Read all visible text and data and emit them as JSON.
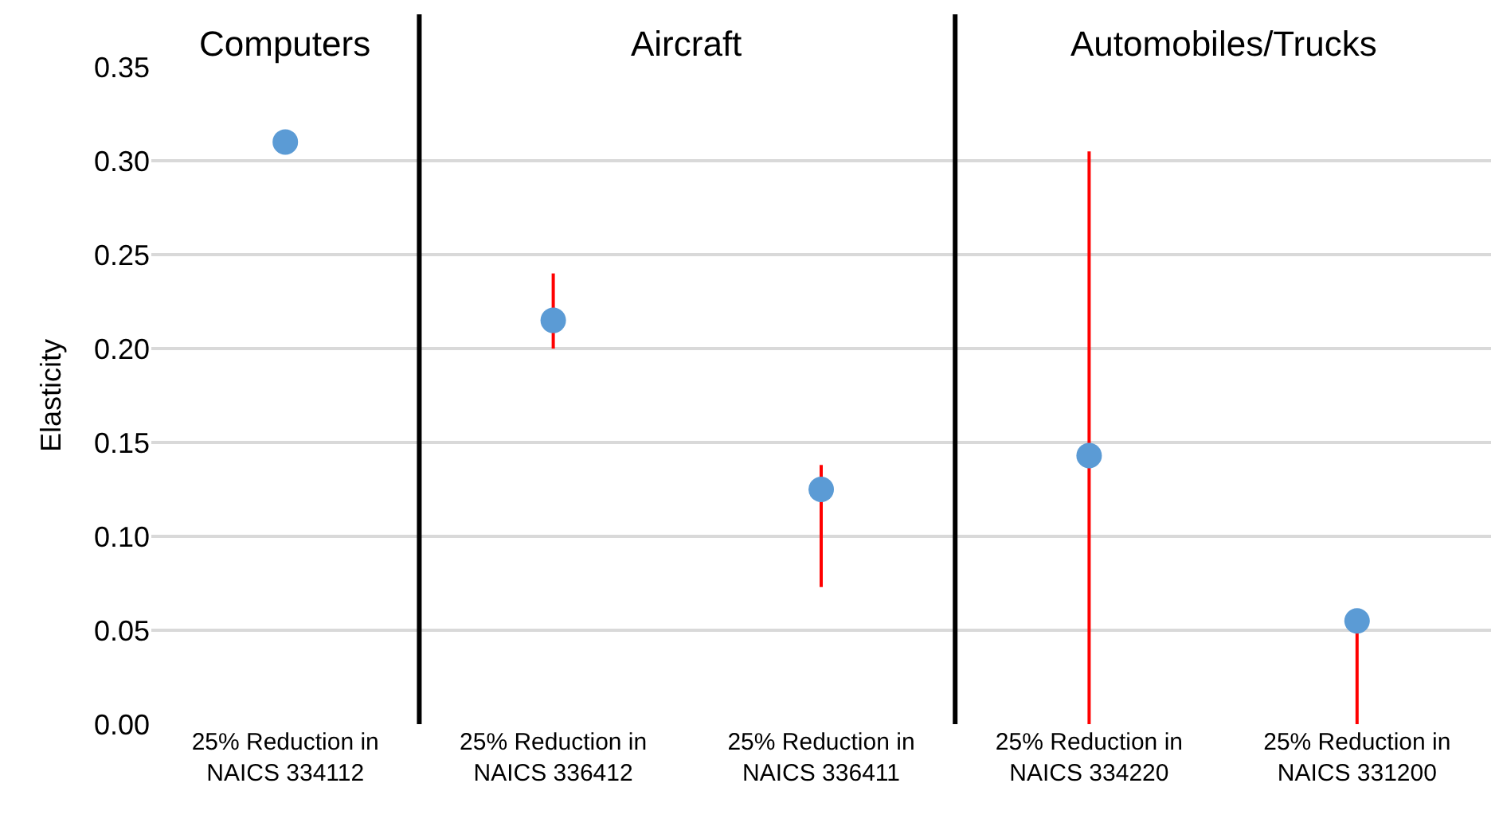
{
  "chart_data": {
    "type": "scatter",
    "ylabel": "Elasticity",
    "categories": [
      "25% Reduction in\nNAICS 334112",
      "25% Reduction in\nNAICS 336412",
      "25% Reduction in\nNAICS 336411",
      "25% Reduction in\nNAICS 334220",
      "25% Reduction in\nNAICS 331200"
    ],
    "series": [
      {
        "color": "#5b9bd5",
        "values": [
          0.31,
          0.215,
          0.125,
          0.143,
          0.055
        ],
        "errors": [
          null,
          [
            0.2,
            0.24
          ],
          [
            0.073,
            0.138
          ],
          [
            0,
            0.305
          ],
          [
            0,
            0.055
          ]
        ]
      }
    ],
    "annotations": [
      "Computers",
      "Aircraft",
      "Automobiles/Trucks"
    ],
    "ylim": [
      0,
      0.35
    ],
    "yticks": [
      {
        "value": 0,
        "label": "0.00"
      },
      {
        "value": 0.05,
        "label": "0.05"
      },
      {
        "value": 0.1,
        "label": "0.10"
      },
      {
        "value": 0.15,
        "label": "0.15"
      },
      {
        "value": 0.2,
        "label": "0.20"
      },
      {
        "value": 0.25,
        "label": "0.25"
      },
      {
        "value": 0.3,
        "label": "0.30"
      },
      {
        "value": 0.35,
        "label": "0.35"
      }
    ],
    "grid": "y",
    "marker": "circle"
  }
}
